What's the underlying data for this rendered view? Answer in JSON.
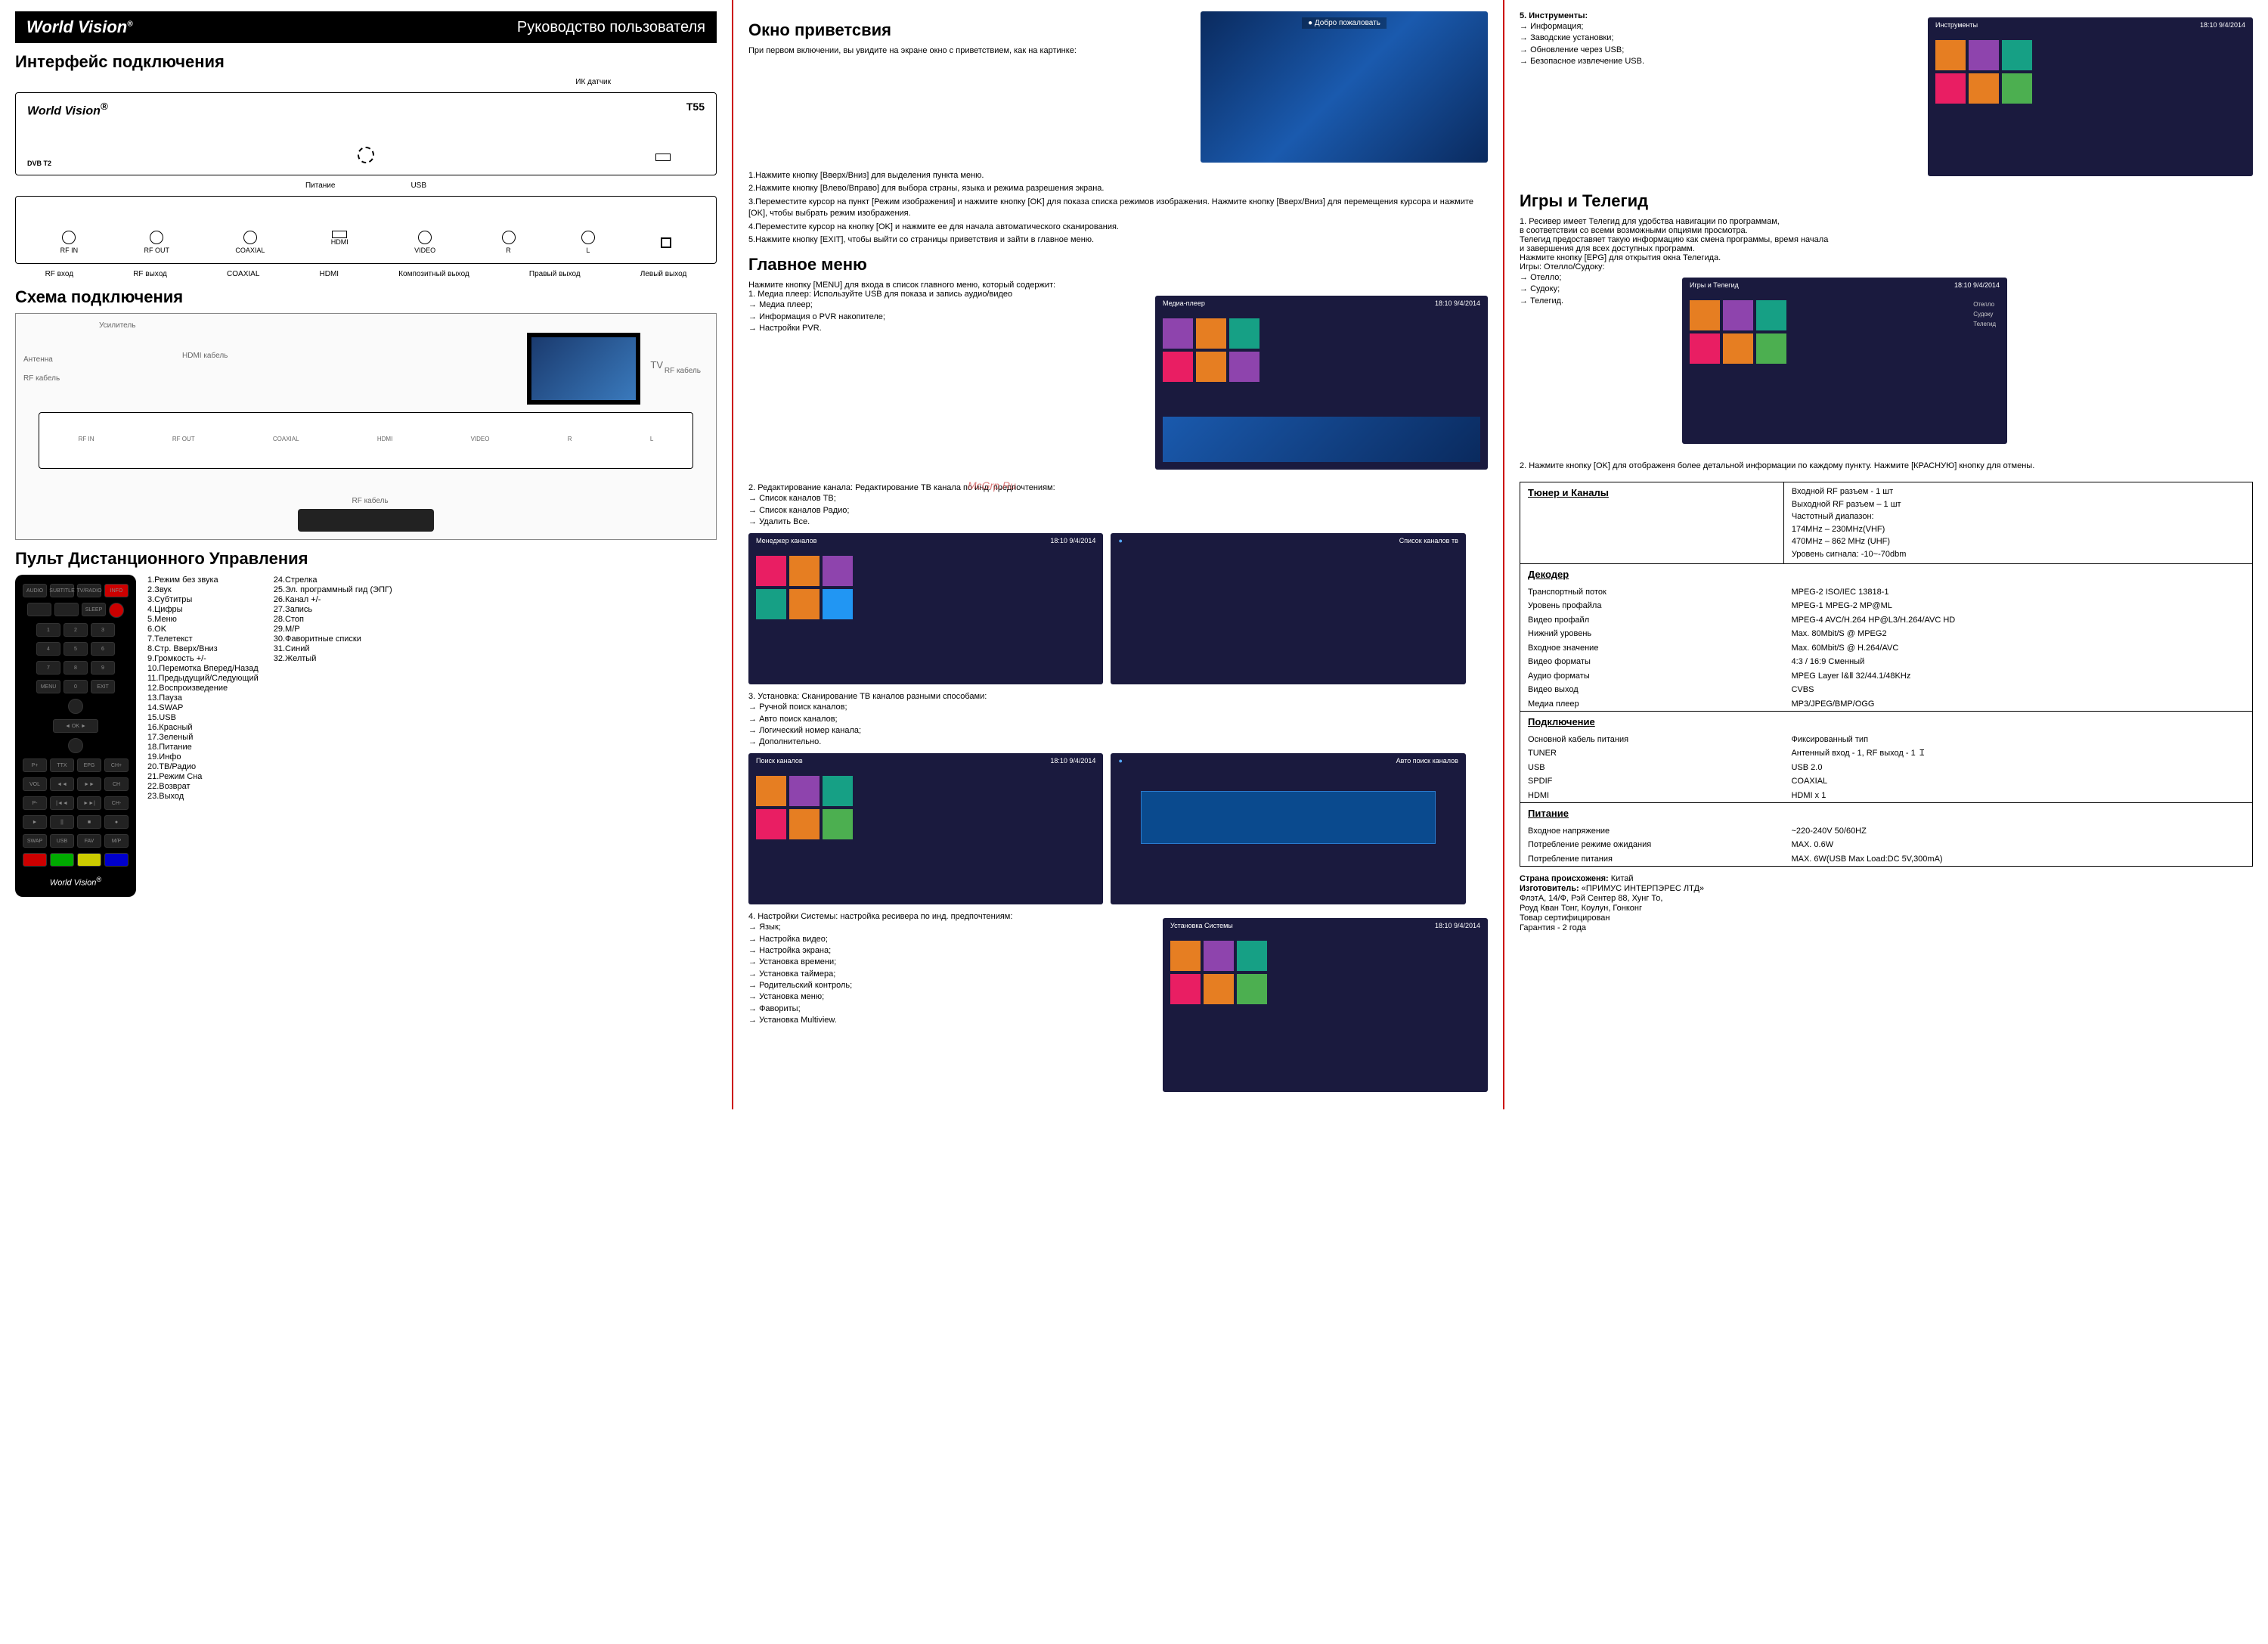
{
  "brand": "World Vision",
  "doc_title": "Руководство пользователя",
  "col1": {
    "h_interface": "Интерфейс подключения",
    "ir_sensor": "ИК датчик",
    "model": "T55",
    "dvb": "DVB T2",
    "power": "Питание",
    "usb": "USB",
    "ports_back": [
      "RF IN",
      "RF OUT",
      "COAXIAL",
      "HDMI",
      "VIDEO",
      "R",
      "L"
    ],
    "port_labels": [
      "RF вход",
      "RF выход",
      "COAXIAL",
      "HDMI",
      "Композитный выход",
      "Правый выход",
      "Левый выход"
    ],
    "h_scheme": "Схема подключения",
    "scheme_labels": {
      "antenna": "Антенна",
      "amplifier": "Усилитель",
      "rf_cable": "RF кабель",
      "hdmi_cable": "HDMI кабель",
      "tv": "TV"
    },
    "h_remote": "Пульт Дистанционного Управления",
    "remote_left": [
      "1.Режим без звука",
      "2.Звук",
      "3.Субтитры",
      "4.Цифры",
      "5.Меню",
      "6.OK",
      "7.Телетекст",
      "8.Стр. Вверх/Вниз",
      "9.Громкость +/-",
      "10.Перемотка Вперед/Назад",
      "11.Предыдущий/Следующий",
      "12.Воспроизведение",
      "13.Пауза",
      "14.SWAP",
      "15.USB",
      "16.Красный",
      "17.Зеленый",
      "18.Питание",
      "19.Инфо",
      "20.ТВ/Радио",
      "21.Режим Сна",
      "22.Возврат",
      "23.Выход"
    ],
    "remote_right": [
      "24.Стрелка",
      "25.Эл. программный гид (ЭПГ)",
      "26.Канал +/-",
      "27.Запись",
      "28.Стоп",
      "29.M/P",
      "30.Фаворитные списки",
      "31.Синий",
      "32.Желтый"
    ]
  },
  "col2": {
    "h_welcome": "Окно приветсвия",
    "welcome_text": "При первом включении, вы увидите на экране окно с приветствием, как на картинке:",
    "welcome_banner": "Добро пожаловать",
    "welcome_steps": [
      "1.Нажмите кнопку [Вверх/Вниз] для выделения пункта меню.",
      "2.Нажмите кнопку [Влево/Вправо] для выбора страны, языка и режима разрешения экрана.",
      "3.Переместите курсор на пункт [Режим изображения] и нажмите кнопку [OK] для показа списка режимов изображения. Нажмите кнопку [Вверх/Вниз] для перемещения курсора и нажмите [OK], чтобы выбрать режим изображения.",
      "4.Переместите курсор на кнопку [OK] и нажмите ее для начала автоматического сканирования.",
      "5.Нажмите кнопку [EXIT], чтобы выйти со страницы приветствия и зайти в главное меню."
    ],
    "h_main": "Главное меню",
    "main_intro": "Нажмите кнопку [MENU] для входа в список главного меню, который содержит:",
    "main_items": [
      "1. Медиа плеер: Используйте USB для показа и запись аудио/видео",
      "Медиа плеер;",
      "Информация о PVR накопителе;",
      "Настройки PVR."
    ],
    "shot_title_media": "Медиа-плеер",
    "shot_time": "18:10 9/4/2014",
    "h_edit": "2. Редактирование канала: Редактирование ТВ канала по инд. предпочтениям:",
    "edit_items": [
      "Список каналов ТВ;",
      "Список каналов Радио;",
      "Удалить Все."
    ],
    "shot_title_mgr": "Менеджер каналов",
    "shot_title_list": "Список каналов тв",
    "h_install": "3. Установка: Сканирование ТВ каналов разными способами:",
    "install_items": [
      "Ручной поиск каналов;",
      "Авто поиск каналов;",
      "Логический номер канала;",
      "Дополнительно."
    ],
    "shot_title_search": "Поиск каналов",
    "shot_title_auto": "Авто поиск каналов",
    "h_system": "4. Настройки Системы: настройка ресивера по инд. предпочтениям:",
    "system_items": [
      "Язык;",
      "Настройка видео;",
      "Настройка экрана;",
      "Установка времени;",
      "Установка таймера;",
      "Родительский контроль;",
      "Установка меню;",
      "Фавориты;",
      "Установка Multiview."
    ],
    "shot_title_system": "Установка Системы",
    "watermark": "McGrp.Ru"
  },
  "col3": {
    "h_tools": "5. Инструменты:",
    "tools_items": [
      "Информация;",
      "Заводские установки;",
      "Обновление через USB;",
      "Безопасное извлечение USB."
    ],
    "shot_title_tools": "Инструменты",
    "h_games": "Игры и Телегид",
    "games_text": [
      "1. Ресивер имеет Телегид для удобства навигации по программам,",
      "в соответствии со всеми возможными опциями просмотра.",
      "Телегид предоставяет такую информацию как смена программы, время начала",
      "и завершения для всех доступных программ.",
      "Нажмите кнопку [EPG] для открытия окна Телегида.",
      "Игры: Отелло/Судоку:"
    ],
    "games_items": [
      "Отелло;",
      "Судоку;",
      "Телегид."
    ],
    "shot_title_games": "Игры и Телегид",
    "games_side": [
      "Отелло",
      "Судоку",
      "Телегид"
    ],
    "note2": "2. Нажмите кнопку [OK] для отображеня более детальной информации по каждому пункту. Нажмите [КРАСНУЮ] кнопку для отмены.",
    "spec": {
      "tuner_h": "Тюнер и Каналы",
      "tuner_v": "Входной RF разъем - 1 шт\nВыходной RF разъем – 1 шт\nЧастотный диапазон:\n174MHz – 230MHz(VHF)\n470MHz – 862 MHz (UHF)\nУровень сигнала: -10~-70dbm",
      "decoder_h": "Декодер",
      "dec_rows": [
        [
          "Транспортный поток",
          "MPEG-2 ISO/IEC 13818-1"
        ],
        [
          "Уровень профайла",
          "MPEG-1 MPEG-2 MP@ML"
        ],
        [
          "Видео профайл",
          "MPEG-4 AVC/H.264 HP@L3/H.264/AVC HD"
        ],
        [
          "Нижний уровень",
          "Max. 80Mbit/S @ MPEG2"
        ],
        [
          "Входное значение",
          "Max. 60Mbit/S @ H.264/AVC"
        ],
        [
          "Видео форматы",
          "4:3 / 16:9 Сменный"
        ],
        [
          "Аудио форматы",
          "MPEG Layer Ⅰ&Ⅱ 32/44.1/48KHz"
        ],
        [
          "Видео выход",
          "CVBS"
        ],
        [
          "Медиа плеер",
          "MP3/JPEG/BMP/OGG"
        ]
      ],
      "conn_h": "Подключение",
      "conn_rows": [
        [
          "Основной кабель питания",
          "Фиксированный тип"
        ],
        [
          "TUNER",
          "Антенный вход - 1, RF выход - 1   Ｉ"
        ],
        [
          "USB",
          "USB 2.0"
        ],
        [
          "SPDIF",
          "COAXIAL"
        ],
        [
          "HDMI",
          "HDMI x 1"
        ]
      ],
      "power_h": "Питание",
      "power_rows": [
        [
          "Входное напряжение",
          "~220-240V 50/60HZ"
        ],
        [
          "Потребление режиме ожидания",
          "MAX. 0.6W"
        ],
        [
          "Потребление питания",
          "MAX. 6W(USB Max Load:DC 5V,300mA)"
        ]
      ]
    },
    "footer": [
      "Страна происхоженя: Китай",
      "Изготовитель: «ПРИМУС ИНТЕРПЭРЕС ЛТД»",
      "ФлэтА, 14/Ф, Рэй Сентер 88, Хунг То,",
      "Роуд Кван Тонг, Коулун, Гонконг",
      "Товар сертифицирован",
      "Гарантия - 2 года"
    ]
  }
}
